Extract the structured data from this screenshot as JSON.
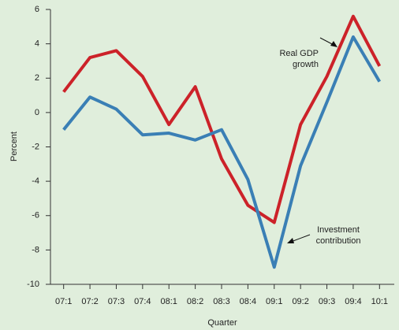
{
  "chart_data": {
    "type": "line",
    "xlabel": "Quarter",
    "ylabel": "Percent",
    "categories": [
      "07:1",
      "07:2",
      "07:3",
      "07:4",
      "08:1",
      "08:2",
      "08:3",
      "08:4",
      "09:1",
      "09:2",
      "09:3",
      "09:4",
      "10:1"
    ],
    "series": [
      {
        "color": "#cc2229",
        "values": [
          1.2,
          3.2,
          3.6,
          2.1,
          -0.7,
          1.5,
          -2.7,
          -5.4,
          -6.4,
          -0.7,
          2.1,
          5.6,
          2.7
        ]
      },
      {
        "color": "#3a7fb5",
        "values": [
          -1.0,
          0.9,
          0.2,
          -1.3,
          -1.2,
          -1.6,
          -1.0,
          -3.9,
          -9.0,
          -3.1,
          0.6,
          4.4,
          1.8
        ]
      }
    ],
    "annotations": [
      {
        "lines": [
          "Real GDP",
          "growth"
        ]
      },
      {
        "lines": [
          "Investment",
          "contribution"
        ]
      }
    ],
    "ylim": [
      -10,
      6
    ],
    "yticks": [
      -10,
      -8,
      -6,
      -4,
      -2,
      0,
      2,
      4,
      6
    ],
    "grid": false
  }
}
